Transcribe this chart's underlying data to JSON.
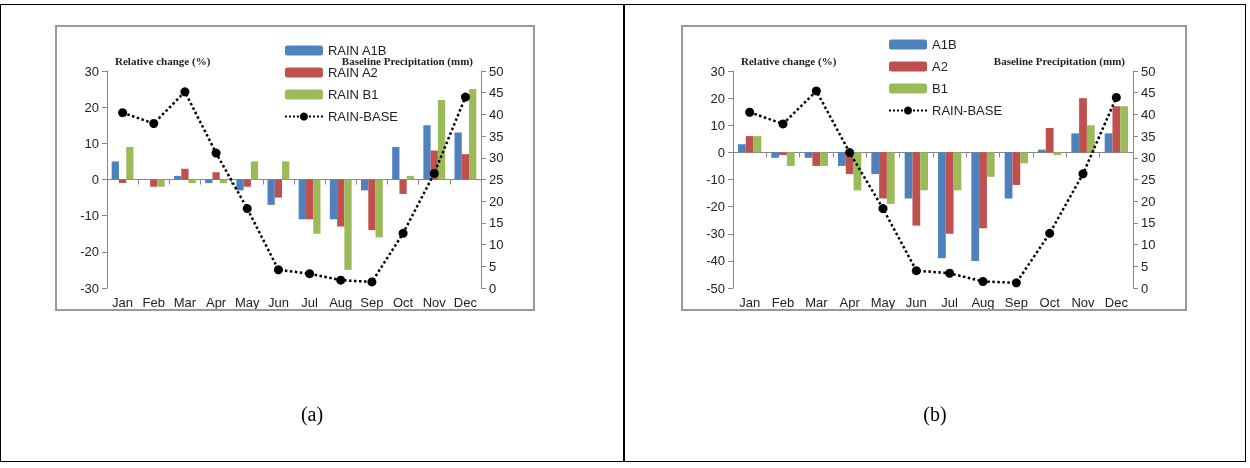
{
  "chart_data": [
    {
      "type": "bar",
      "ylabel": "Relative change (%)",
      "y2label": "Baseline Precipitation (mm)",
      "categories": [
        "Jan",
        "Feb",
        "Mar",
        "Apr",
        "May",
        "Jun",
        "Jul",
        "Aug",
        "Sep",
        "Oct",
        "Nov",
        "Dec"
      ],
      "series": [
        {
          "name": "RAIN A1B",
          "color": "#4f81bd",
          "values": [
            5,
            0,
            1,
            -1,
            -3,
            -7,
            -11,
            -11,
            -3,
            9,
            15,
            13
          ]
        },
        {
          "name": "RAIN A2",
          "color": "#c0504d",
          "values": [
            -1,
            -2,
            3,
            2,
            -2,
            -5,
            -11,
            -13,
            -14,
            -4,
            8,
            7
          ]
        },
        {
          "name": "RAIN B1",
          "color": "#9bbb59",
          "values": [
            9,
            -2,
            -1,
            -1,
            5,
            5,
            -15,
            -25,
            -16,
            1,
            22,
            25
          ]
        },
        {
          "name": "RAIN-BASE",
          "type": "line",
          "axis": "y2",
          "color": "#000000",
          "marker": "circle",
          "line_style": "dotted",
          "values": [
            40.4,
            37.9,
            45.2,
            31.1,
            18.3,
            4.2,
            3.3,
            1.8,
            1.4,
            12.6,
            26.4,
            44
          ]
        }
      ],
      "ylim": [
        -30,
        30
      ],
      "yticks": [
        -30,
        -20,
        -10,
        0,
        10,
        20,
        30
      ],
      "y2lim": [
        0,
        50
      ],
      "y2ticks": [
        0,
        5,
        10,
        15,
        20,
        25,
        30,
        35,
        40,
        45,
        50
      ],
      "legend": "top right",
      "annotations": [
        "(a)"
      ]
    },
    {
      "type": "bar",
      "ylabel": "Relative change (%)",
      "y2label": "Baseline Precipitation (mm)",
      "categories": [
        "Jan",
        "Feb",
        "Mar",
        "Apr",
        "May",
        "Jun",
        "Jul",
        "Aug",
        "Sep",
        "Oct",
        "Nov",
        "Dec"
      ],
      "series": [
        {
          "name": "A1B",
          "color": "#4f81bd",
          "values": [
            3,
            -2,
            -2,
            -5,
            -8,
            -17,
            -39,
            -40,
            -17,
            1,
            7,
            7
          ]
        },
        {
          "name": "A2",
          "color": "#c0504d",
          "values": [
            6,
            -1,
            -5,
            -8,
            -17,
            -27,
            -30,
            -28,
            -12,
            9,
            20,
            17
          ]
        },
        {
          "name": "B1",
          "color": "#9bbb59",
          "values": [
            6,
            -5,
            -5,
            -14,
            -19,
            -14,
            -14,
            -9,
            -4,
            -1,
            10,
            17
          ]
        },
        {
          "name": "RAIN-BASE",
          "type": "line",
          "axis": "y2",
          "color": "#000000",
          "marker": "circle",
          "line_style": "dotted",
          "values": [
            40.5,
            37.8,
            45.4,
            31.2,
            18.3,
            4,
            3.4,
            1.5,
            1.2,
            12.6,
            26.3,
            43.9
          ]
        }
      ],
      "ylim": [
        -50,
        30
      ],
      "yticks": [
        -50,
        -40,
        -30,
        -20,
        -10,
        0,
        10,
        20,
        30
      ],
      "y2lim": [
        0,
        50
      ],
      "y2ticks": [
        0,
        5,
        10,
        15,
        20,
        25,
        30,
        35,
        40,
        45,
        50
      ],
      "legend": "top",
      "annotations": [
        "(b)"
      ]
    }
  ]
}
